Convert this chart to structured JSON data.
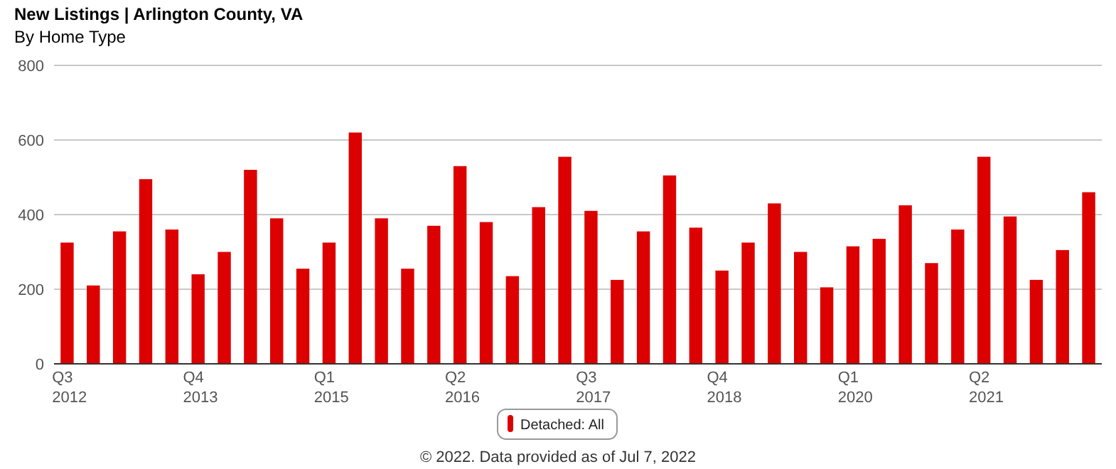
{
  "chart_data": {
    "type": "bar",
    "title": "New Listings | Arlington County, VA",
    "subtitle": "By Home Type",
    "categories": [
      "Q3 2012",
      null,
      null,
      null,
      null,
      "Q4 2013",
      null,
      null,
      null,
      null,
      "Q1 2015",
      null,
      null,
      null,
      null,
      "Q2 2016",
      null,
      null,
      null,
      null,
      "Q3 2017",
      null,
      null,
      null,
      null,
      "Q4 2018",
      null,
      null,
      null,
      null,
      "Q1 2020",
      null,
      null,
      null,
      null,
      "Q2 2021",
      null,
      null,
      null,
      null
    ],
    "series": [
      {
        "name": "Detached: All",
        "color": "#dd0000",
        "values": [
          325,
          210,
          355,
          495,
          360,
          240,
          300,
          520,
          390,
          255,
          325,
          620,
          390,
          255,
          370,
          530,
          380,
          235,
          420,
          555,
          410,
          225,
          355,
          505,
          365,
          250,
          325,
          430,
          300,
          205,
          315,
          335,
          425,
          270,
          360,
          555,
          395,
          225,
          305,
          460
        ]
      }
    ],
    "ylim": [
      0,
      800
    ],
    "yticks": [
      0,
      200,
      400,
      600,
      800
    ],
    "grid": "y",
    "legend": "bottom",
    "annotations": [
      "© 2022. Data provided as of Jul 7, 2022"
    ]
  }
}
